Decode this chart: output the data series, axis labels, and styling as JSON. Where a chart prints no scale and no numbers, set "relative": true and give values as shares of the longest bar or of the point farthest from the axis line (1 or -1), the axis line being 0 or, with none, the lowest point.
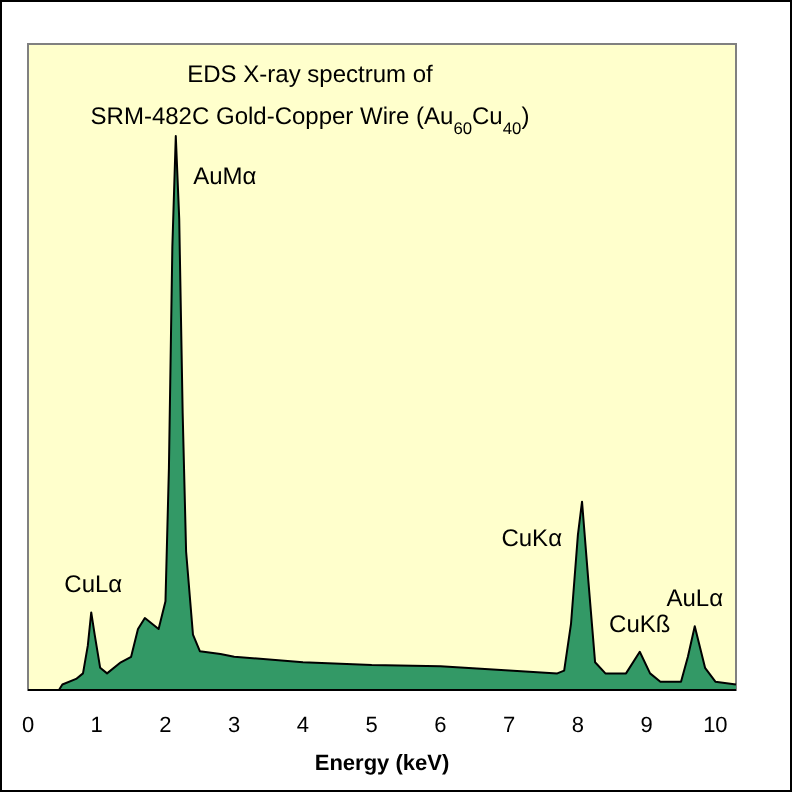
{
  "chart_data": {
    "type": "area",
    "title": "EDS X-ray spectrum of",
    "subtitle": "SRM-482C Gold-Copper Wire (Au$_{60}$Cu$_{40}$)",
    "xlabel": "Energy (keV)",
    "relative": true,
    "xlim": [
      0,
      10.3
    ],
    "xticks": [
      0,
      1,
      2,
      3,
      4,
      5,
      6,
      7,
      8,
      9,
      10
    ],
    "grid": false,
    "x": [
      0.45,
      0.5,
      0.7,
      0.8,
      0.87,
      0.92,
      0.97,
      1.05,
      1.15,
      1.35,
      1.5,
      1.6,
      1.7,
      1.8,
      1.9,
      2.0,
      2.05,
      2.1,
      2.15,
      2.2,
      2.25,
      2.3,
      2.4,
      2.5,
      2.8,
      3.0,
      4.0,
      5.0,
      6.0,
      7.0,
      7.7,
      7.8,
      7.9,
      8.0,
      8.06,
      8.15,
      8.25,
      8.4,
      8.7,
      8.9,
      9.05,
      9.2,
      9.5,
      9.6,
      9.7,
      9.85,
      10.0,
      10.3
    ],
    "series": [
      {
        "color": "#339966",
        "values": [
          0,
          0.01,
          0.02,
          0.03,
          0.08,
          0.14,
          0.1,
          0.04,
          0.03,
          0.05,
          0.06,
          0.11,
          0.13,
          0.12,
          0.11,
          0.16,
          0.4,
          0.8,
          1.0,
          0.85,
          0.5,
          0.25,
          0.1,
          0.07,
          0.065,
          0.06,
          0.05,
          0.045,
          0.043,
          0.035,
          0.03,
          0.035,
          0.12,
          0.28,
          0.34,
          0.2,
          0.05,
          0.03,
          0.03,
          0.069,
          0.03,
          0.015,
          0.015,
          0.06,
          0.115,
          0.04,
          0.015,
          0.01
        ]
      }
    ],
    "annotations": [
      {
        "text": "CuLα",
        "x": 0.95,
        "y": 0.14
      },
      {
        "text": "AuMα",
        "x": 2.17,
        "y": 1.0
      },
      {
        "text": "CuKα",
        "x": 8.06,
        "y": 0.34
      },
      {
        "text": "CuKß",
        "x": 8.9,
        "y": 0.069
      },
      {
        "text": "AuLα",
        "x": 9.7,
        "y": 0.115
      }
    ]
  }
}
